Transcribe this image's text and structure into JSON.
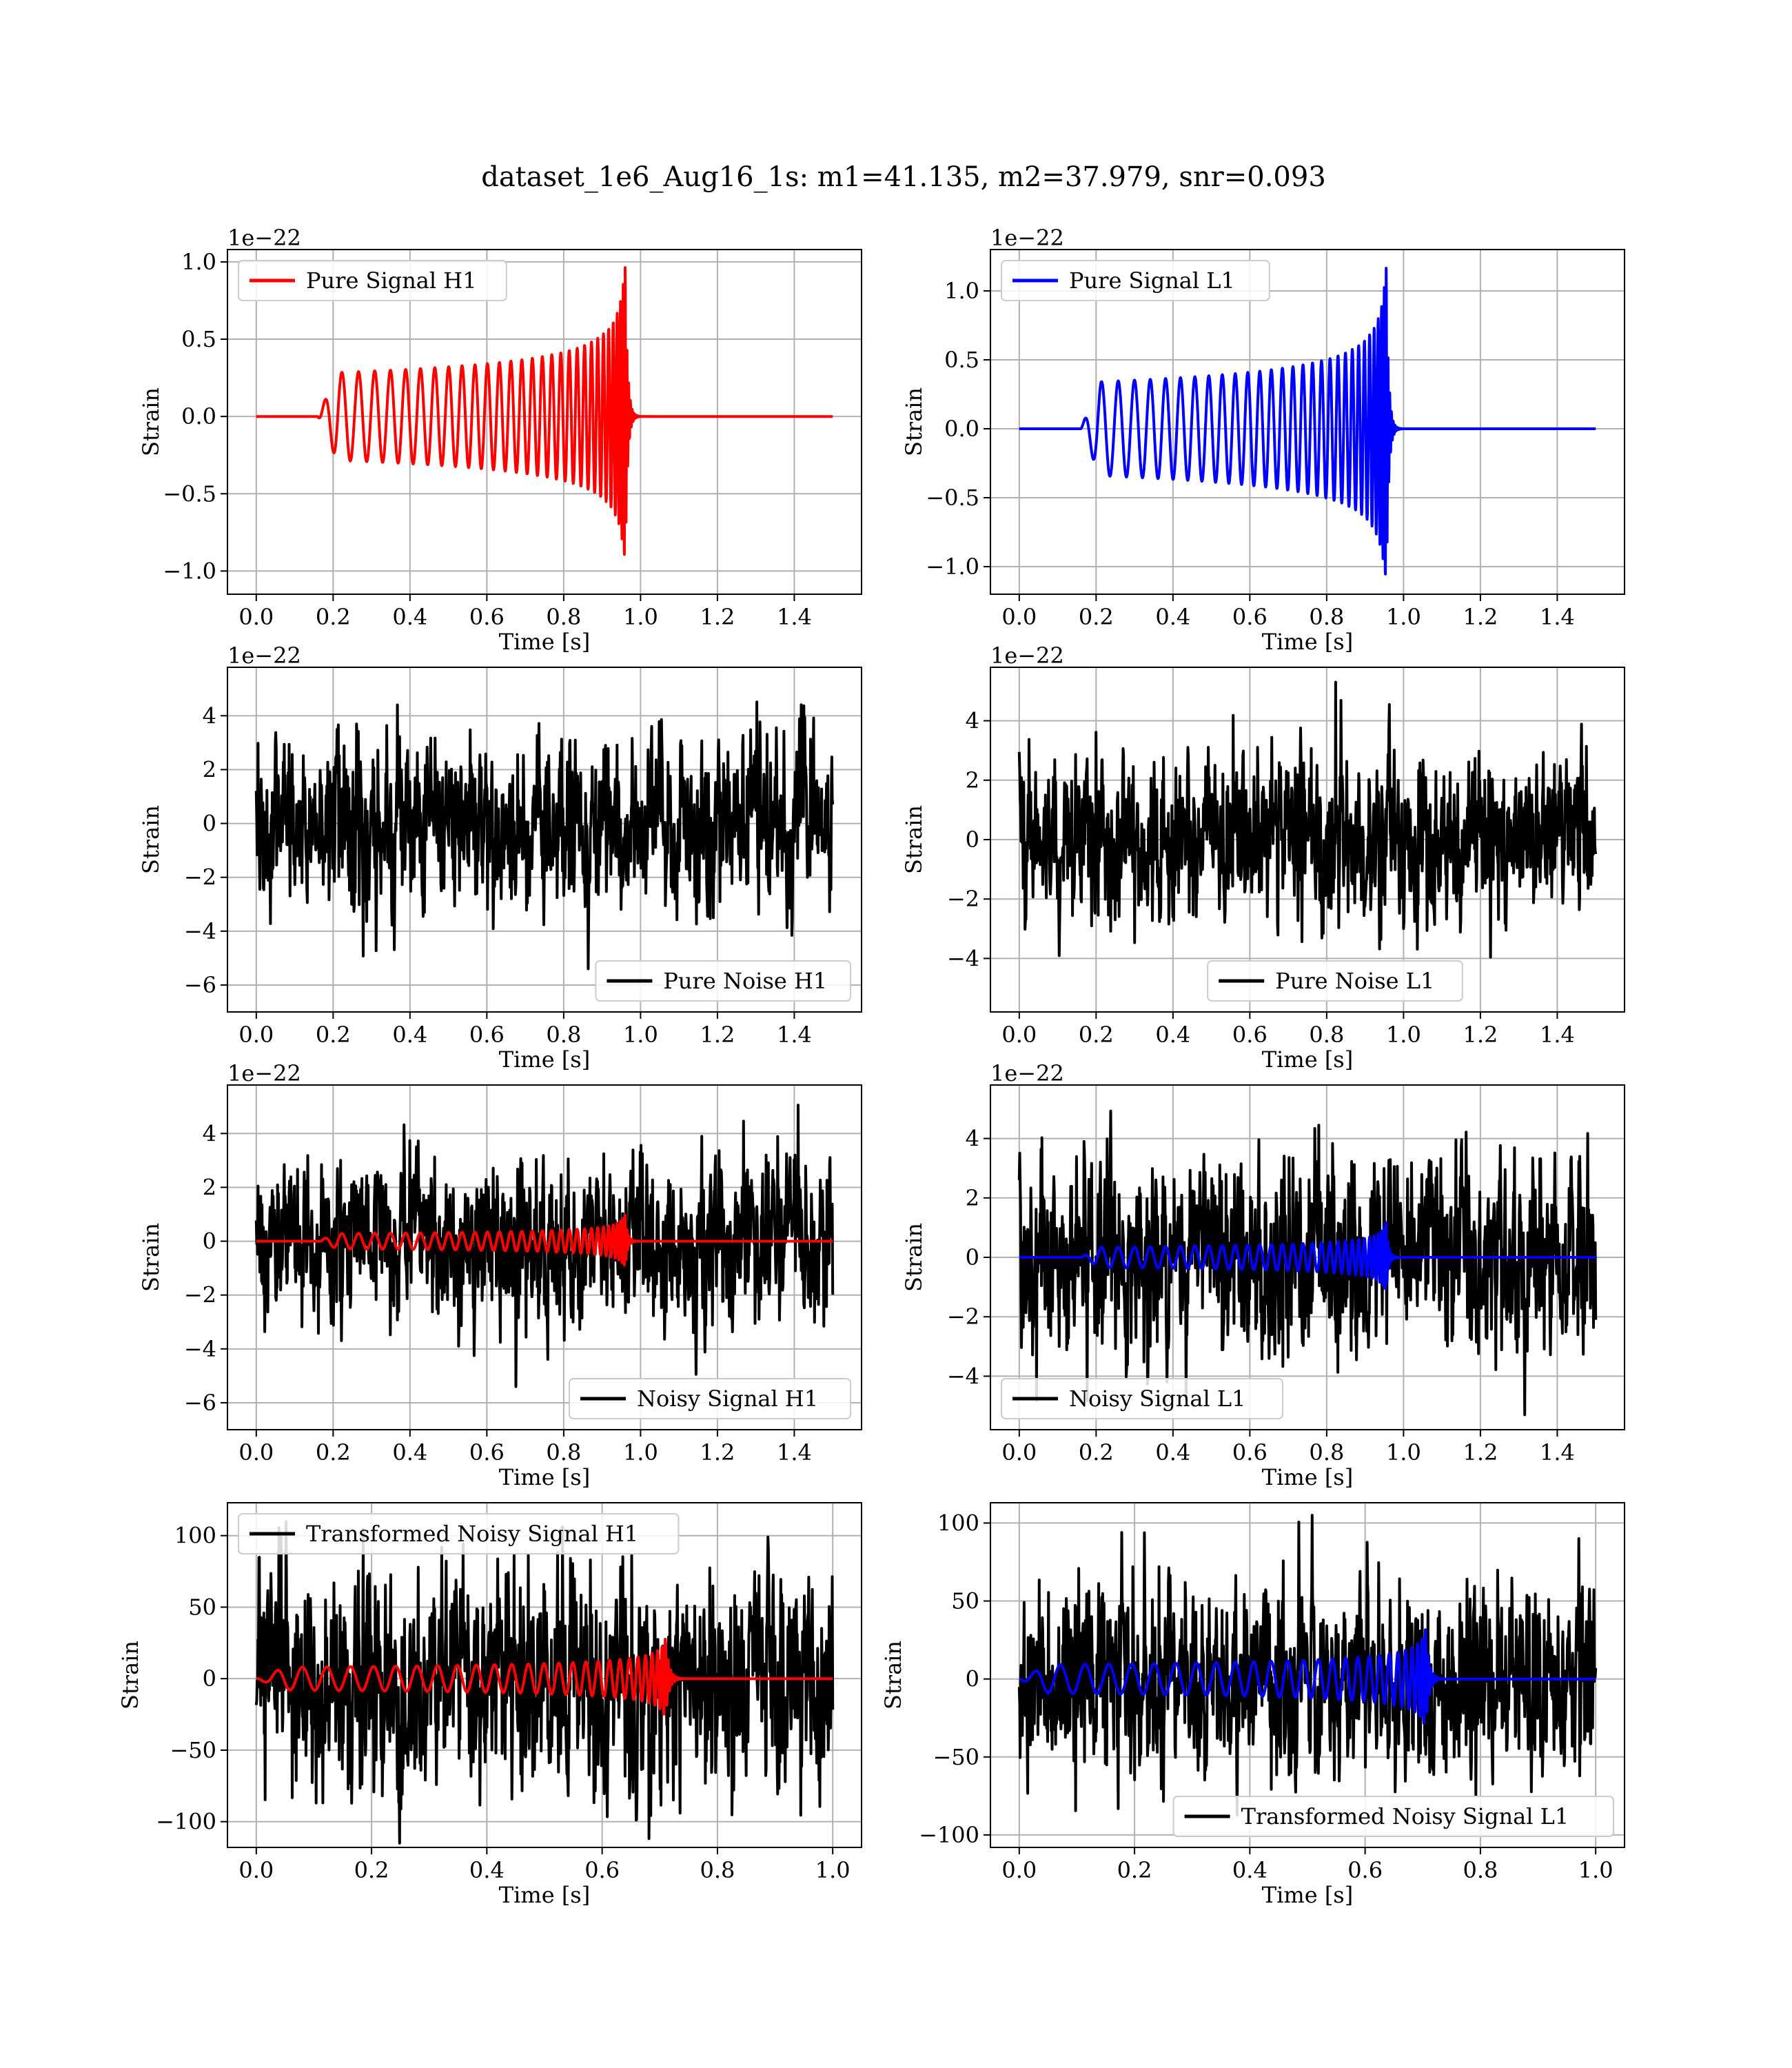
{
  "figure": {
    "title": "dataset_1e6_Aug16_1s: m1=41.135, m2=37.979, snr=0.093"
  },
  "colors": {
    "h1": "#ff0000",
    "l1": "#0000ff",
    "noise": "#000000"
  },
  "chart_data": [
    {
      "type": "line",
      "kind": "pure_signal",
      "series": [
        {
          "name": "Pure Signal H1",
          "color": "#ff0000",
          "peak": 1.0,
          "merger": 0.96
        }
      ],
      "xlabel": "Time [s]",
      "ylabel": "Strain",
      "offset_label": "1e−22",
      "xlim": [
        -0.075,
        1.575
      ],
      "ylim": [
        -1.15,
        1.08
      ],
      "xticks": [
        0.0,
        0.2,
        0.4,
        0.6,
        0.8,
        1.0,
        1.2,
        1.4
      ],
      "xtick_labels": [
        "0.0",
        "0.2",
        "0.4",
        "0.6",
        "0.8",
        "1.0",
        "1.2",
        "1.4"
      ],
      "yticks": [
        -1.0,
        -0.5,
        0.0,
        0.5,
        1.0
      ],
      "ytick_labels": [
        "−1.0",
        "−0.5",
        "0.0",
        "0.5",
        "1.0"
      ],
      "legend": "top-left",
      "grid": true
    },
    {
      "type": "line",
      "kind": "pure_signal",
      "series": [
        {
          "name": "Pure Signal L1",
          "color": "#0000ff",
          "peak": 1.2,
          "merger": 0.955
        }
      ],
      "xlabel": "Time [s]",
      "ylabel": "Strain",
      "offset_label": "1e−22",
      "xlim": [
        -0.075,
        1.575
      ],
      "ylim": [
        -1.2,
        1.3
      ],
      "xticks": [
        0.0,
        0.2,
        0.4,
        0.6,
        0.8,
        1.0,
        1.2,
        1.4
      ],
      "xtick_labels": [
        "0.0",
        "0.2",
        "0.4",
        "0.6",
        "0.8",
        "1.0",
        "1.2",
        "1.4"
      ],
      "yticks": [
        -1.0,
        -0.5,
        0.0,
        0.5,
        1.0
      ],
      "ytick_labels": [
        "−1.0",
        "−0.5",
        "0.0",
        "0.5",
        "1.0"
      ],
      "legend": "top-left",
      "grid": true
    },
    {
      "type": "line",
      "kind": "noise",
      "series": [
        {
          "name": "Pure Noise H1",
          "color": "#000000",
          "amplitude": 5.4
        }
      ],
      "xlabel": "Time [s]",
      "ylabel": "Strain",
      "offset_label": "1e−22",
      "xlim": [
        -0.075,
        1.575
      ],
      "ylim": [
        -7.0,
        5.8
      ],
      "xticks": [
        0.0,
        0.2,
        0.4,
        0.6,
        0.8,
        1.0,
        1.2,
        1.4
      ],
      "xtick_labels": [
        "0.0",
        "0.2",
        "0.4",
        "0.6",
        "0.8",
        "1.0",
        "1.2",
        "1.4"
      ],
      "yticks": [
        -6,
        -4,
        -2,
        0,
        2,
        4
      ],
      "ytick_labels": [
        "−6",
        "−4",
        "−2",
        "0",
        "2",
        "4"
      ],
      "legend": "bottom-right",
      "grid": true
    },
    {
      "type": "line",
      "kind": "noise",
      "series": [
        {
          "name": "Pure Noise L1",
          "color": "#000000",
          "amplitude": 5.3
        }
      ],
      "xlabel": "Time [s]",
      "ylabel": "Strain",
      "offset_label": "1e−22",
      "xlim": [
        -0.075,
        1.575
      ],
      "ylim": [
        -5.8,
        5.8
      ],
      "xticks": [
        0.0,
        0.2,
        0.4,
        0.6,
        0.8,
        1.0,
        1.2,
        1.4
      ],
      "xtick_labels": [
        "0.0",
        "0.2",
        "0.4",
        "0.6",
        "0.8",
        "1.0",
        "1.2",
        "1.4"
      ],
      "yticks": [
        -4,
        -2,
        0,
        2,
        4
      ],
      "ytick_labels": [
        "−4",
        "−2",
        "0",
        "2",
        "4"
      ],
      "legend": "bottom-center",
      "grid": true
    },
    {
      "type": "line",
      "kind": "noisy_signal",
      "series": [
        {
          "name": "Noisy Signal H1",
          "color": "#000000",
          "amplitude": 5.4
        },
        {
          "name": "",
          "color": "#ff0000",
          "peak": 1.0,
          "merger": 0.96
        }
      ],
      "xlabel": "Time [s]",
      "ylabel": "Strain",
      "offset_label": "1e−22",
      "xlim": [
        -0.075,
        1.575
      ],
      "ylim": [
        -7.0,
        5.8
      ],
      "xticks": [
        0.0,
        0.2,
        0.4,
        0.6,
        0.8,
        1.0,
        1.2,
        1.4
      ],
      "xtick_labels": [
        "0.0",
        "0.2",
        "0.4",
        "0.6",
        "0.8",
        "1.0",
        "1.2",
        "1.4"
      ],
      "yticks": [
        -6,
        -4,
        -2,
        0,
        2,
        4
      ],
      "ytick_labels": [
        "−6",
        "−4",
        "−2",
        "0",
        "2",
        "4"
      ],
      "legend": "bottom-right",
      "grid": true
    },
    {
      "type": "line",
      "kind": "noisy_signal",
      "series": [
        {
          "name": "Noisy Signal L1",
          "color": "#000000",
          "amplitude": 5.3
        },
        {
          "name": "",
          "color": "#0000ff",
          "peak": 1.2,
          "merger": 0.955
        }
      ],
      "xlabel": "Time [s]",
      "ylabel": "Strain",
      "offset_label": "1e−22",
      "xlim": [
        -0.075,
        1.575
      ],
      "ylim": [
        -5.8,
        5.8
      ],
      "xticks": [
        0.0,
        0.2,
        0.4,
        0.6,
        0.8,
        1.0,
        1.2,
        1.4
      ],
      "xtick_labels": [
        "0.0",
        "0.2",
        "0.4",
        "0.6",
        "0.8",
        "1.0",
        "1.2",
        "1.4"
      ],
      "yticks": [
        -4,
        -2,
        0,
        2,
        4
      ],
      "ytick_labels": [
        "−4",
        "−2",
        "0",
        "2",
        "4"
      ],
      "legend": "bottom-left",
      "grid": true
    },
    {
      "type": "line",
      "kind": "transformed",
      "series": [
        {
          "name": "Transformed Noisy Signal H1",
          "color": "#000000",
          "amplitude": 115
        },
        {
          "name": "",
          "color": "#ff0000",
          "peak": 28,
          "merger": 0.71
        }
      ],
      "xlabel": "Time [s]",
      "ylabel": "Strain",
      "offset_label": "",
      "xlim": [
        -0.05,
        1.05
      ],
      "ylim": [
        -118,
        123
      ],
      "xticks": [
        0.0,
        0.2,
        0.4,
        0.6,
        0.8,
        1.0
      ],
      "xtick_labels": [
        "0.0",
        "0.2",
        "0.4",
        "0.6",
        "0.8",
        "1.0"
      ],
      "yticks": [
        -100,
        -50,
        0,
        50,
        100
      ],
      "ytick_labels": [
        "−100",
        "−50",
        "0",
        "50",
        "100"
      ],
      "legend": "top-left",
      "grid": true
    },
    {
      "type": "line",
      "kind": "transformed",
      "series": [
        {
          "name": "Transformed Noisy Signal L1",
          "color": "#000000",
          "amplitude": 105
        },
        {
          "name": "",
          "color": "#0000ff",
          "peak": 32,
          "merger": 0.705
        }
      ],
      "xlabel": "Time [s]",
      "ylabel": "Strain",
      "offset_label": "",
      "xlim": [
        -0.05,
        1.05
      ],
      "ylim": [
        -108,
        113
      ],
      "xticks": [
        0.0,
        0.2,
        0.4,
        0.6,
        0.8,
        1.0
      ],
      "xtick_labels": [
        "0.0",
        "0.2",
        "0.4",
        "0.6",
        "0.8",
        "1.0"
      ],
      "yticks": [
        -100,
        -50,
        0,
        50,
        100
      ],
      "ytick_labels": [
        "−100",
        "−50",
        "0",
        "50",
        "100"
      ],
      "legend": "bottom-right",
      "grid": true
    }
  ]
}
